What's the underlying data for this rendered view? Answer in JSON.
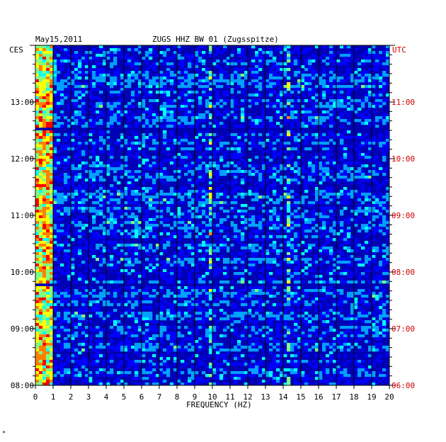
{
  "header": {
    "date": "May15,2011",
    "station_title": "ZUGS HHZ BW 01 (Zugsspitze)"
  },
  "axes": {
    "left_zone": "CES",
    "right_zone": "UTC",
    "xlabel": "FREQUENCY (HZ)"
  },
  "footer": {
    "mark": "*"
  },
  "chart_data": {
    "type": "heatmap",
    "title": "ZUGS HHZ BW 01 (Zugsspitze)",
    "date": "May15,2011",
    "xlabel": "FREQUENCY (HZ)",
    "xlim": [
      0,
      20
    ],
    "x_ticks": [
      "0",
      "1",
      "2",
      "3",
      "4",
      "5",
      "6",
      "7",
      "8",
      "9",
      "10",
      "11",
      "12",
      "13",
      "14",
      "15",
      "16",
      "17",
      "18",
      "19",
      "20"
    ],
    "ylim_ces_hours": [
      8.0,
      14.0
    ],
    "y_ticks_ces": [
      "08:00",
      "09:00",
      "10:00",
      "11:00",
      "12:00",
      "13:00"
    ],
    "y_ticks_utc": [
      "06:00",
      "07:00",
      "08:00",
      "09:00",
      "10:00",
      "11:00"
    ],
    "colorscale": [
      "#000080",
      "#0000ff",
      "#00a0ff",
      "#00ffff",
      "#80ff80",
      "#ffff00",
      "#ff8000",
      "#ff0000"
    ],
    "background_color": "#0000b4",
    "gap_rows_ces_hours": [
      12.52,
      9.78
    ],
    "grid": true,
    "features": [
      {
        "note": "strong energy band",
        "freq_range_hz": [
          0.1,
          1.0
        ]
      },
      {
        "note": "narrow spectral line",
        "freq_hz": 14.3
      },
      {
        "note": "narrow spectral line",
        "freq_hz": 9.9
      }
    ]
  }
}
